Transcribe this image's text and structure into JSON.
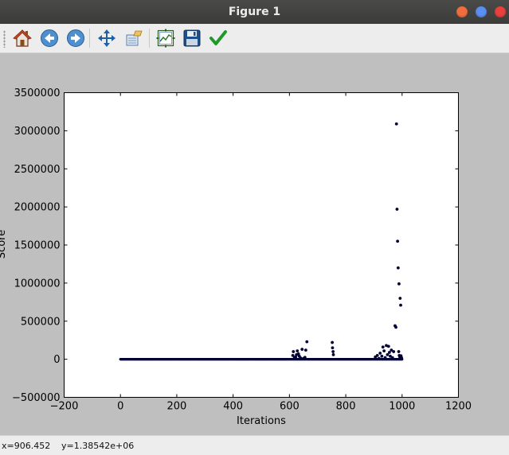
{
  "window": {
    "title": "Figure 1",
    "controls": {
      "minimize_color": "#f26d3d",
      "maximize_color": "#5b8ef0",
      "close_color": "#e8413d"
    }
  },
  "toolbar": {
    "items": [
      {
        "name": "home-button",
        "icon": "home-icon"
      },
      {
        "name": "back-button",
        "icon": "back-arrow-icon"
      },
      {
        "name": "forward-button",
        "icon": "forward-arrow-icon"
      },
      {
        "name": "pan-button",
        "icon": "move-arrows-icon"
      },
      {
        "name": "zoom-button",
        "icon": "zoom-rect-icon"
      },
      {
        "name": "subplots-button",
        "icon": "subplots-icon"
      },
      {
        "name": "save-button",
        "icon": "floppy-disk-icon"
      },
      {
        "name": "edit-parameters-button",
        "icon": "checkmark-icon"
      }
    ]
  },
  "status": {
    "x_readout": "x=906.452",
    "y_readout": "y=1.38542e+06"
  },
  "chart_data": {
    "type": "scatter",
    "title": "",
    "xlabel": "Iterations",
    "ylabel": "Score",
    "xlim": [
      -200,
      1200
    ],
    "ylim": [
      -500000,
      3500000
    ],
    "xticks": [
      "−200",
      "0",
      "200",
      "400",
      "600",
      "800",
      "1000",
      "1200"
    ],
    "yticks": [
      "−500000",
      "0",
      "500000",
      "1000000",
      "1500000",
      "2000000",
      "2500000",
      "3000000",
      "3500000"
    ],
    "grid": false,
    "marker_color": "#000033",
    "baseline": {
      "x_start": 0,
      "x_end": 1000,
      "y": 0
    },
    "points": [
      [
        612,
        50000
      ],
      [
        614,
        100000
      ],
      [
        618,
        20000
      ],
      [
        622,
        30000
      ],
      [
        625,
        60000
      ],
      [
        628,
        110000
      ],
      [
        632,
        70000
      ],
      [
        635,
        40000
      ],
      [
        640,
        15000
      ],
      [
        645,
        130000
      ],
      [
        650,
        10000
      ],
      [
        655,
        25000
      ],
      [
        658,
        120000
      ],
      [
        662,
        230000
      ],
      [
        752,
        220000
      ],
      [
        753,
        150000
      ],
      [
        755,
        100000
      ],
      [
        756,
        60000
      ],
      [
        905,
        30000
      ],
      [
        912,
        50000
      ],
      [
        918,
        10000
      ],
      [
        922,
        80000
      ],
      [
        928,
        40000
      ],
      [
        932,
        160000
      ],
      [
        936,
        110000
      ],
      [
        940,
        20000
      ],
      [
        944,
        180000
      ],
      [
        948,
        60000
      ],
      [
        952,
        170000
      ],
      [
        955,
        90000
      ],
      [
        958,
        40000
      ],
      [
        962,
        120000
      ],
      [
        966,
        20000
      ],
      [
        970,
        100000
      ],
      [
        975,
        440000
      ],
      [
        978,
        420000
      ],
      [
        980,
        3090000
      ],
      [
        982,
        1970000
      ],
      [
        984,
        1550000
      ],
      [
        986,
        1200000
      ],
      [
        988,
        100000
      ],
      [
        989,
        990000
      ],
      [
        990,
        50000
      ],
      [
        992,
        30000
      ],
      [
        993,
        800000
      ],
      [
        995,
        710000
      ],
      [
        996,
        45000
      ],
      [
        998,
        20000
      ]
    ]
  }
}
